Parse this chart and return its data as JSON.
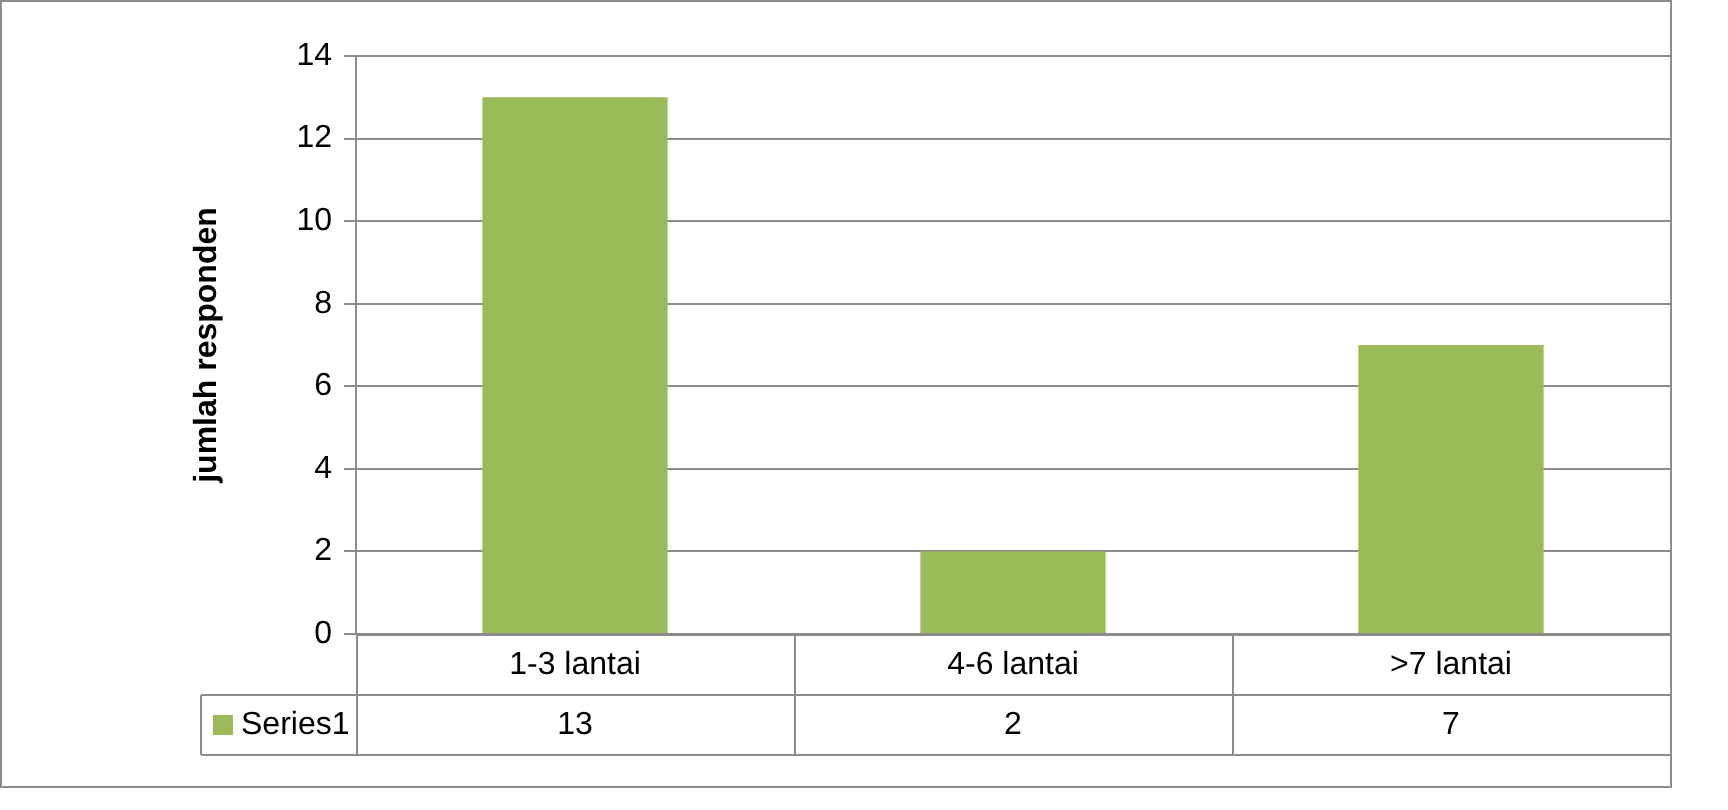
{
  "chart_data": {
    "type": "bar",
    "ylabel": "jumlah responden",
    "categories": [
      "1-3 lantai",
      "4-6 lantai",
      ">7 lantai"
    ],
    "series": [
      {
        "name": "Series1",
        "color": "#9bbb59",
        "values": [
          13,
          2,
          7
        ]
      }
    ],
    "ylim": [
      0,
      14
    ],
    "yticks": [
      0,
      2,
      4,
      6,
      8,
      10,
      12,
      14
    ],
    "grid": "y",
    "data_labels": true,
    "legend": "bottom"
  }
}
